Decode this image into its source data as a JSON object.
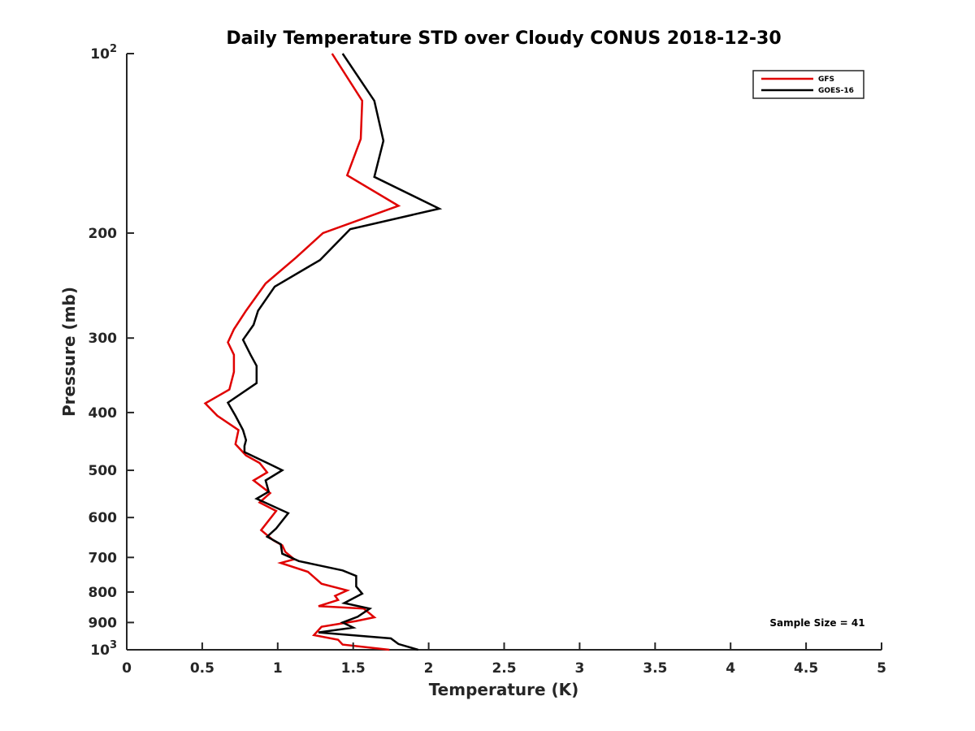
{
  "chart_data": {
    "type": "line",
    "title": "Daily Temperature STD over Cloudy CONUS 2018-12-30",
    "xlabel": "Temperature (K)",
    "ylabel": "Pressure (mb)",
    "xlim": [
      0,
      5
    ],
    "ylim": [
      100,
      1000
    ],
    "yscale": "log",
    "y_reversed": true,
    "x_ticks": [
      0,
      0.5,
      1,
      1.5,
      2,
      2.5,
      3,
      3.5,
      4,
      4.5,
      5
    ],
    "x_tick_labels": [
      "0",
      "0.5",
      "1",
      "1.5",
      "2",
      "2.5",
      "3",
      "3.5",
      "4",
      "4.5",
      "5"
    ],
    "y_ticks": [
      100,
      200,
      300,
      400,
      500,
      600,
      700,
      800,
      900,
      1000
    ],
    "y_tick_labels": [
      {
        "base": "10",
        "exp": "2"
      },
      {
        "base": "200",
        "exp": ""
      },
      {
        "base": "300",
        "exp": ""
      },
      {
        "base": "400",
        "exp": ""
      },
      {
        "base": "500",
        "exp": ""
      },
      {
        "base": "600",
        "exp": ""
      },
      {
        "base": "700",
        "exp": ""
      },
      {
        "base": "800",
        "exp": ""
      },
      {
        "base": "900",
        "exp": ""
      },
      {
        "base": "10",
        "exp": "3"
      }
    ],
    "grid": false,
    "legend_position": "top-right",
    "annotation": "Sample Size = 41",
    "series": [
      {
        "name": "GFS",
        "color": "#e00000",
        "points": [
          [
            1.36,
            100
          ],
          [
            1.56,
            120
          ],
          [
            1.55,
            139
          ],
          [
            1.46,
            160
          ],
          [
            1.8,
            180
          ],
          [
            1.3,
            200
          ],
          [
            1.12,
            220
          ],
          [
            0.92,
            243
          ],
          [
            0.79,
            270
          ],
          [
            0.71,
            290
          ],
          [
            0.67,
            305
          ],
          [
            0.71,
            320
          ],
          [
            0.71,
            342
          ],
          [
            0.68,
            366
          ],
          [
            0.52,
            386
          ],
          [
            0.6,
            405
          ],
          [
            0.74,
            428
          ],
          [
            0.72,
            452
          ],
          [
            0.79,
            472
          ],
          [
            0.88,
            486
          ],
          [
            0.93,
            504
          ],
          [
            0.84,
            520
          ],
          [
            0.95,
            546
          ],
          [
            0.88,
            566
          ],
          [
            0.99,
            585
          ],
          [
            0.89,
            630
          ],
          [
            0.97,
            655
          ],
          [
            1.03,
            668
          ],
          [
            1.05,
            685
          ],
          [
            1.11,
            705
          ],
          [
            1.02,
            715
          ],
          [
            1.2,
            740
          ],
          [
            1.29,
            775
          ],
          [
            1.46,
            795
          ],
          [
            1.38,
            812
          ],
          [
            1.4,
            825
          ],
          [
            1.27,
            845
          ],
          [
            1.57,
            853
          ],
          [
            1.64,
            882
          ],
          [
            1.52,
            895
          ],
          [
            1.29,
            915
          ],
          [
            1.24,
            945
          ],
          [
            1.4,
            962
          ],
          [
            1.43,
            980
          ],
          [
            1.74,
            1000
          ]
        ]
      },
      {
        "name": "GOES-16",
        "color": "#000000",
        "points": [
          [
            1.43,
            100
          ],
          [
            1.64,
            120
          ],
          [
            1.7,
            140
          ],
          [
            1.64,
            161
          ],
          [
            2.07,
            182
          ],
          [
            1.48,
            197
          ],
          [
            1.28,
            222
          ],
          [
            0.98,
            246
          ],
          [
            0.87,
            270
          ],
          [
            0.84,
            285
          ],
          [
            0.77,
            302
          ],
          [
            0.82,
            320
          ],
          [
            0.86,
            334
          ],
          [
            0.86,
            357
          ],
          [
            0.67,
            385
          ],
          [
            0.72,
            405
          ],
          [
            0.77,
            428
          ],
          [
            0.79,
            445
          ],
          [
            0.78,
            455
          ],
          [
            0.78,
            466
          ],
          [
            0.96,
            490
          ],
          [
            1.03,
            500
          ],
          [
            0.92,
            520
          ],
          [
            0.94,
            543
          ],
          [
            0.86,
            558
          ],
          [
            1.07,
            590
          ],
          [
            0.99,
            626
          ],
          [
            0.93,
            646
          ],
          [
            1.02,
            665
          ],
          [
            1.03,
            690
          ],
          [
            1.14,
            710
          ],
          [
            1.43,
            736
          ],
          [
            1.52,
            752
          ],
          [
            1.52,
            783
          ],
          [
            1.56,
            805
          ],
          [
            1.44,
            835
          ],
          [
            1.61,
            853
          ],
          [
            1.53,
            880
          ],
          [
            1.43,
            900
          ],
          [
            1.5,
            918
          ],
          [
            1.27,
            935
          ],
          [
            1.75,
            957
          ],
          [
            1.8,
            978
          ],
          [
            1.93,
            1000
          ]
        ]
      }
    ]
  }
}
